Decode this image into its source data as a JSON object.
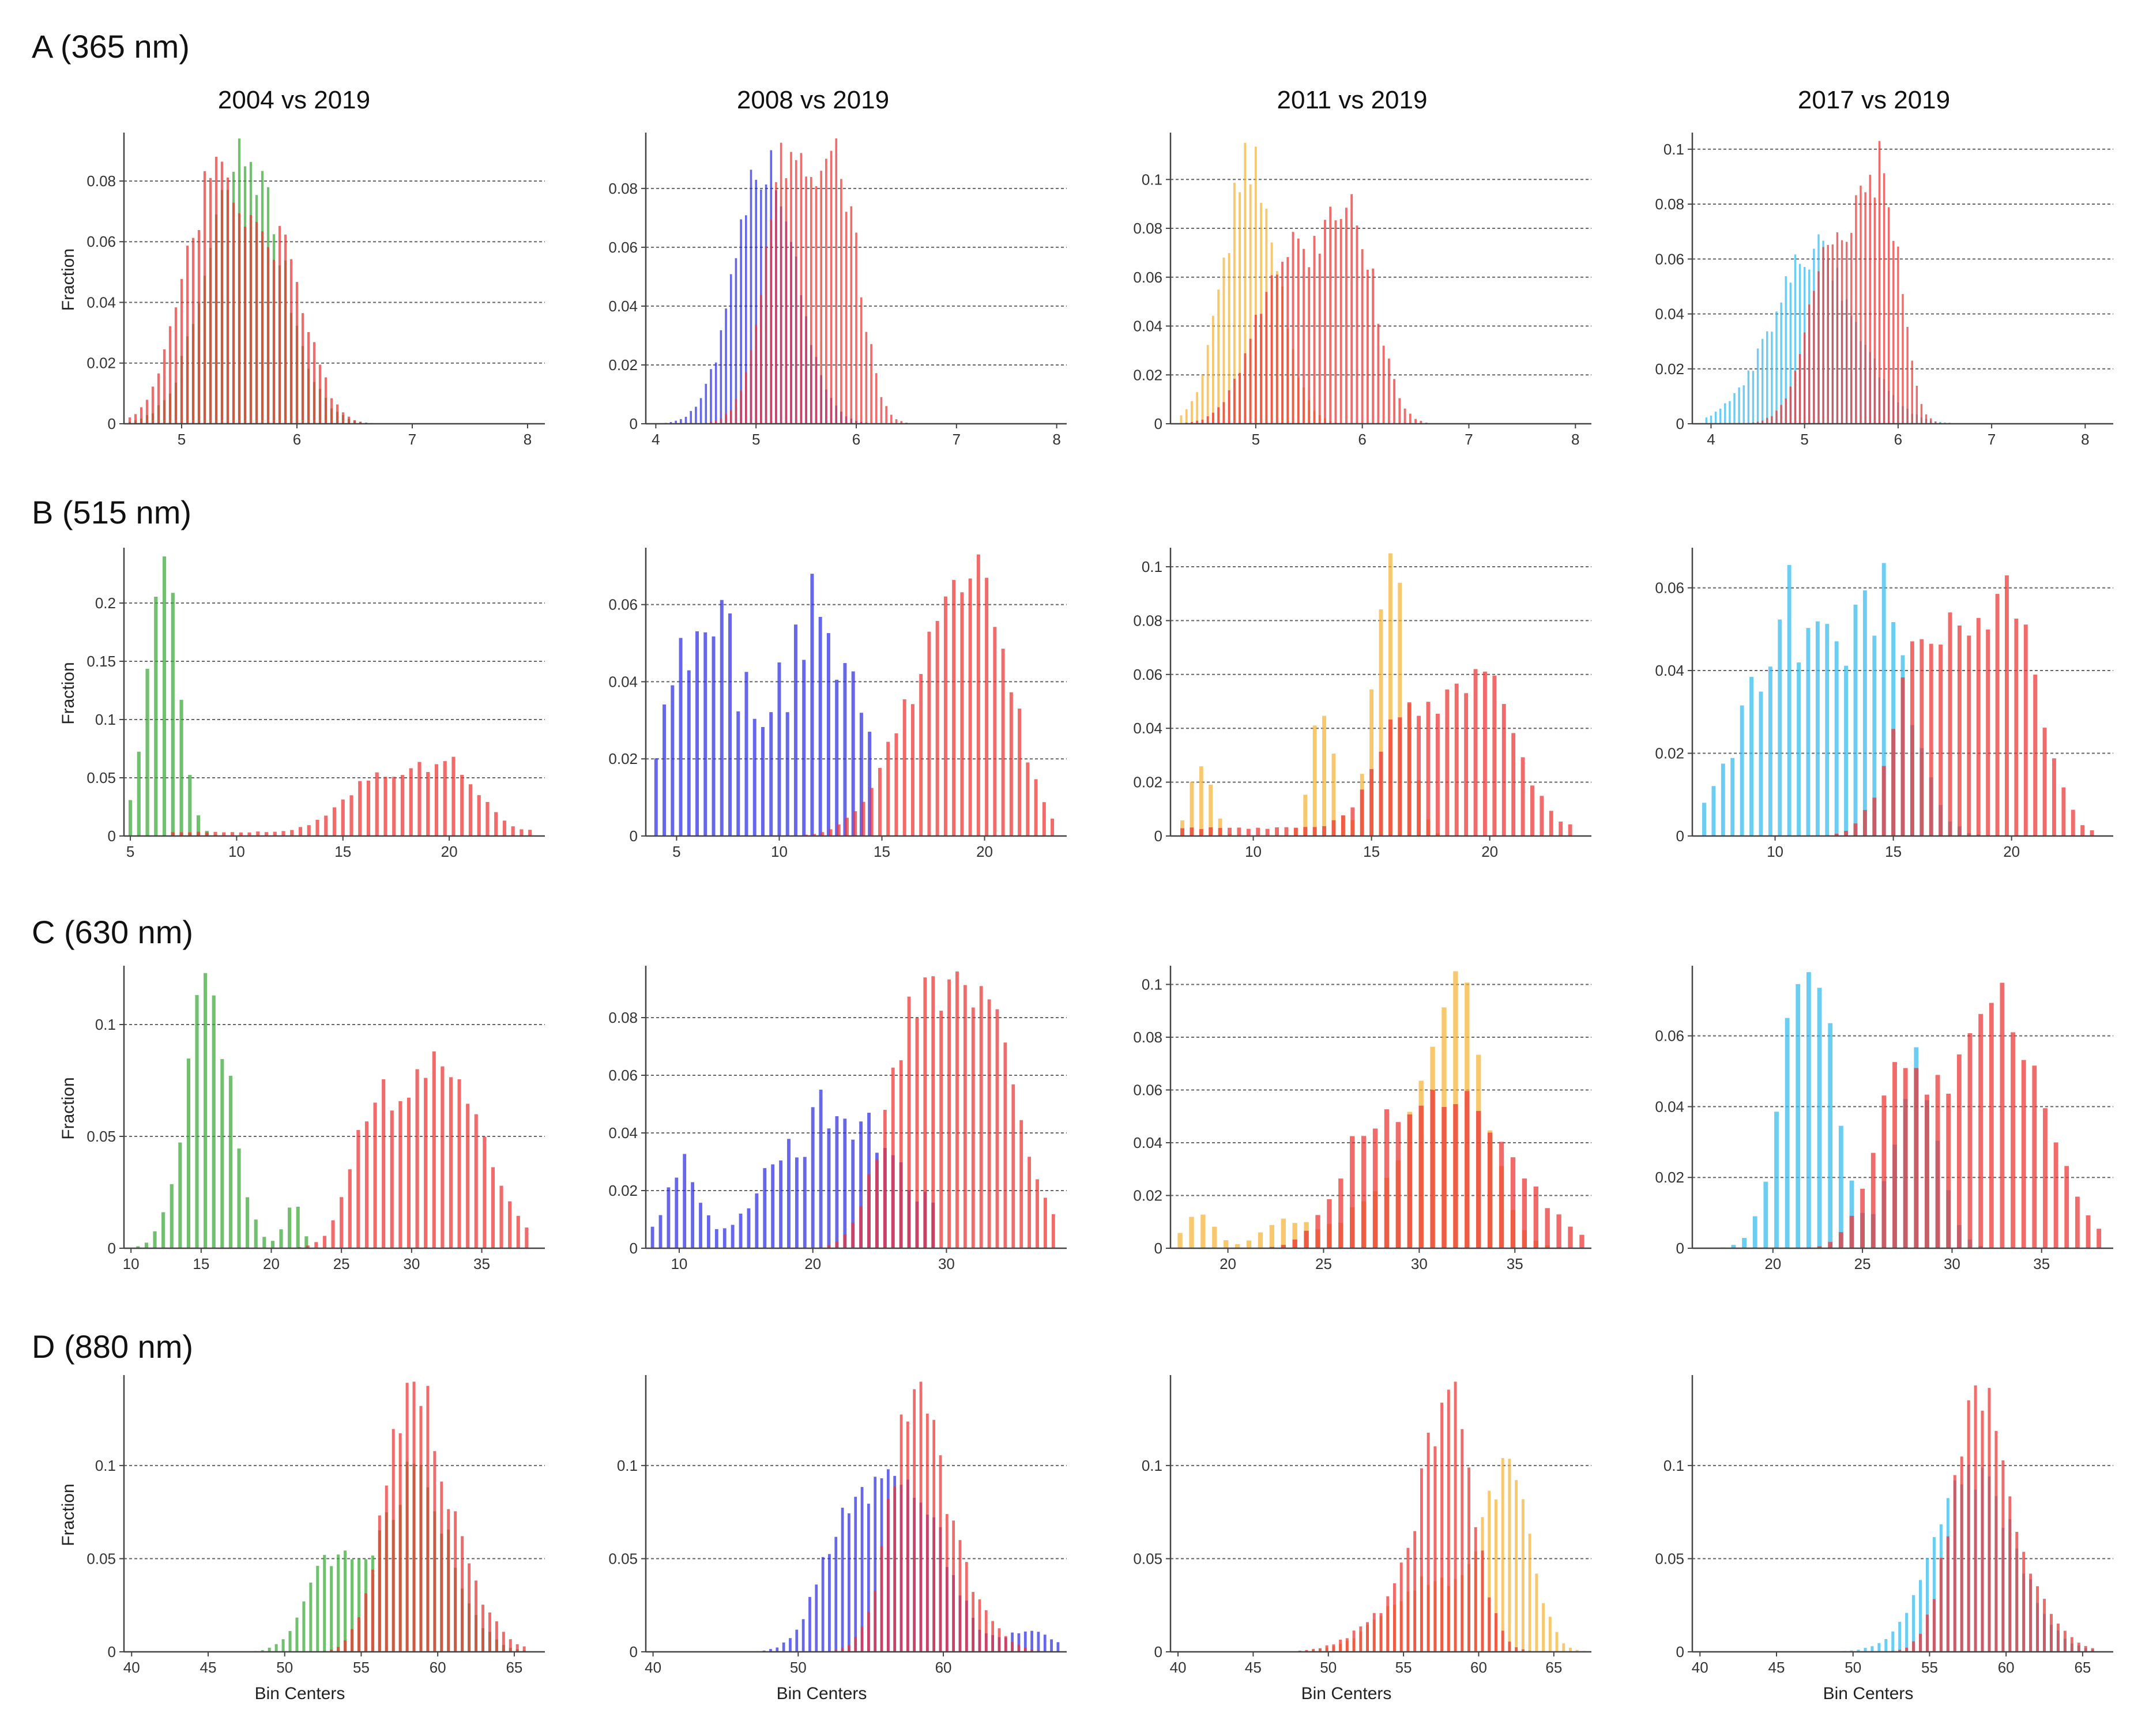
{
  "figure": {
    "column_titles": [
      "2004 vs 2019",
      "2008 vs 2019",
      "2011 vs 2019",
      "2017 vs 2019"
    ],
    "row_titles": [
      "A (365 nm)",
      "B (515 nm)",
      "C (630 nm)",
      "D (880 nm)"
    ],
    "ylabel": "Fraction",
    "xlabel": "Bin Centers",
    "colors": {
      "2004": "#3aa838",
      "2008": "#2e2ee6",
      "2011": "#f5b335",
      "2017": "#33bbee",
      "2019": "#ee3333"
    }
  },
  "chart_data": [
    {
      "type": "bar",
      "row": 0,
      "col": 0,
      "title": "2004 vs 2019",
      "xlim": [
        4.5,
        8.15
      ],
      "ylim": [
        0,
        0.095
      ],
      "xticks": [
        5,
        6,
        7,
        8
      ],
      "yticks": [
        0,
        0.02,
        0.04,
        0.06,
        0.08
      ],
      "ylabel": "Fraction",
      "xlabel": "",
      "series": [
        {
          "name": "2004",
          "color": "#3aa838",
          "dist": [
            [
              5.55,
              0.32,
              1.0
            ]
          ],
          "peak": 0.094,
          "start": 4.55,
          "end": 7.6,
          "step": 0.05
        },
        {
          "name": "2019",
          "color": "#ee3333",
          "dist": [
            [
              5.3,
              0.28,
              1.0
            ],
            [
              5.9,
              0.22,
              0.6
            ]
          ],
          "peak": 0.088,
          "start": 4.55,
          "end": 7.6,
          "step": 0.05
        }
      ]
    },
    {
      "type": "bar",
      "row": 0,
      "col": 1,
      "title": "2008 vs 2019",
      "xlim": [
        3.9,
        8.1
      ],
      "ylim": [
        0,
        0.098
      ],
      "xticks": [
        4,
        5,
        6,
        7,
        8
      ],
      "yticks": [
        0,
        0.02,
        0.04,
        0.06,
        0.08
      ],
      "ylabel": "",
      "xlabel": "",
      "series": [
        {
          "name": "2008",
          "color": "#2e2ee6",
          "dist": [
            [
              5.1,
              0.3,
              1.0
            ]
          ],
          "peak": 0.093,
          "start": 4.0,
          "end": 7.9,
          "step": 0.05
        },
        {
          "name": "2019",
          "color": "#ee3333",
          "dist": [
            [
              5.35,
              0.25,
              1.0
            ],
            [
              5.85,
              0.2,
              0.8
            ]
          ],
          "peak": 0.097,
          "start": 4.0,
          "end": 7.9,
          "step": 0.05
        }
      ]
    },
    {
      "type": "bar",
      "row": 0,
      "col": 2,
      "title": "2011 vs 2019",
      "xlim": [
        4.2,
        8.15
      ],
      "ylim": [
        0,
        0.118
      ],
      "xticks": [
        5,
        6,
        7,
        8
      ],
      "yticks": [
        0,
        0.02,
        0.04,
        0.06,
        0.08,
        0.1
      ],
      "ylabel": "",
      "xlabel": "",
      "series": [
        {
          "name": "2011",
          "color": "#f5b335",
          "dist": [
            [
              4.95,
              0.25,
              1.0
            ]
          ],
          "peak": 0.115,
          "start": 4.3,
          "end": 7.9,
          "step": 0.05
        },
        {
          "name": "2019",
          "color": "#ee3333",
          "dist": [
            [
              5.3,
              0.3,
              0.8
            ],
            [
              5.9,
              0.22,
              1.0
            ]
          ],
          "peak": 0.094,
          "start": 4.3,
          "end": 7.9,
          "step": 0.05
        }
      ]
    },
    {
      "type": "bar",
      "row": 0,
      "col": 3,
      "title": "2017 vs 2019",
      "xlim": [
        3.8,
        8.3
      ],
      "ylim": [
        0,
        0.105
      ],
      "xticks": [
        4,
        5,
        6,
        7,
        8
      ],
      "yticks": [
        0,
        0.02,
        0.04,
        0.06,
        0.08,
        0.1
      ],
      "ylabel": "",
      "xlabel": "",
      "series": [
        {
          "name": "2017",
          "color": "#33bbee",
          "dist": [
            [
              5.1,
              0.45,
              1.0
            ]
          ],
          "peak": 0.069,
          "start": 3.95,
          "end": 8.1,
          "step": 0.05
        },
        {
          "name": "2019",
          "color": "#ee3333",
          "dist": [
            [
              5.35,
              0.28,
              0.9
            ],
            [
              5.85,
              0.18,
              1.0
            ]
          ],
          "peak": 0.103,
          "start": 3.95,
          "end": 8.1,
          "step": 0.05
        }
      ]
    },
    {
      "type": "bar",
      "row": 1,
      "col": 0,
      "title": "2004 vs 2019",
      "xlim": [
        4.7,
        24.5
      ],
      "ylim": [
        0,
        0.245
      ],
      "xticks": [
        5,
        10,
        15,
        20
      ],
      "yticks": [
        0,
        0.05,
        0.1,
        0.15,
        0.2
      ],
      "ylabel": "Fraction",
      "xlabel": "",
      "series": [
        {
          "name": "2004",
          "color": "#3aa838",
          "dist": [
            [
              6.5,
              0.75,
              1.0
            ]
          ],
          "peak": 0.24,
          "start": 5.0,
          "end": 9.5,
          "step": 0.4
        },
        {
          "name": "2019",
          "color": "#ee3333",
          "dist": [
            [
              16.5,
              1.6,
              0.75
            ],
            [
              20,
              1.4,
              1.0
            ]
          ],
          "peak": 0.068,
          "start": 7.0,
          "end": 24.0,
          "step": 0.4,
          "floor": 0.004
        }
      ]
    },
    {
      "type": "bar",
      "row": 1,
      "col": 1,
      "title": "2008 vs 2019",
      "xlim": [
        3.5,
        24.0
      ],
      "ylim": [
        0,
        0.074
      ],
      "xticks": [
        5,
        10,
        15,
        20
      ],
      "yticks": [
        0,
        0.02,
        0.04,
        0.06
      ],
      "ylabel": "",
      "xlabel": "",
      "series": [
        {
          "name": "2008",
          "color": "#2e2ee6",
          "dist": [
            [
              6.5,
              1.8,
              1.0
            ],
            [
              12,
              1.8,
              1.0
            ]
          ],
          "peak": 0.068,
          "start": 4.0,
          "end": 14.5,
          "step": 0.4,
          "jitter": 0.55
        },
        {
          "name": "2019",
          "color": "#ee3333",
          "dist": [
            [
              17.5,
              2.0,
              0.8
            ],
            [
              20,
              1.5,
              1.0
            ]
          ],
          "peak": 0.073,
          "start": 4.5,
          "end": 23.5,
          "step": 0.4
        }
      ]
    },
    {
      "type": "bar",
      "row": 1,
      "col": 2,
      "title": "2011 vs 2019",
      "xlim": [
        6.5,
        24.3
      ],
      "ylim": [
        0,
        0.106
      ],
      "xticks": [
        10,
        15,
        20
      ],
      "yticks": [
        0,
        0.02,
        0.04,
        0.06,
        0.08,
        0.1
      ],
      "ylabel": "",
      "xlabel": "",
      "series": [
        {
          "name": "2011",
          "color": "#f5b335",
          "dist": [
            [
              15.8,
              0.65,
              1.0
            ],
            [
              12.9,
              0.45,
              0.45
            ],
            [
              7.8,
              0.45,
              0.25
            ]
          ],
          "peak": 0.105,
          "start": 7.0,
          "end": 18.0,
          "step": 0.4
        },
        {
          "name": "2019",
          "color": "#ee3333",
          "dist": [
            [
              16.5,
              1.3,
              0.7
            ],
            [
              19.8,
              1.3,
              1.0
            ]
          ],
          "peak": 0.062,
          "start": 7.0,
          "end": 23.5,
          "step": 0.4,
          "floor": 0.003
        }
      ]
    },
    {
      "type": "bar",
      "row": 1,
      "col": 3,
      "title": "2017 vs 2019",
      "xlim": [
        6.5,
        24.3
      ],
      "ylim": [
        0,
        0.069
      ],
      "xticks": [
        10,
        15,
        20
      ],
      "yticks": [
        0,
        0.02,
        0.04,
        0.06
      ],
      "ylabel": "",
      "xlabel": "",
      "series": [
        {
          "name": "2017",
          "color": "#33bbee",
          "dist": [
            [
              10.5,
              1.8,
              1.0
            ],
            [
              14.5,
              1.3,
              0.95
            ]
          ],
          "peak": 0.066,
          "start": 7.0,
          "end": 22.0,
          "step": 0.4,
          "jitter": 0.45
        },
        {
          "name": "2019",
          "color": "#ee3333",
          "dist": [
            [
              16.5,
              1.3,
              0.85
            ],
            [
              19.8,
              1.3,
              1.0
            ]
          ],
          "peak": 0.063,
          "start": 7.0,
          "end": 23.5,
          "step": 0.4
        }
      ]
    },
    {
      "type": "bar",
      "row": 2,
      "col": 0,
      "title": "2004 vs 2019",
      "xlim": [
        9.5,
        39.5
      ],
      "ylim": [
        0,
        0.125
      ],
      "xticks": [
        10,
        15,
        20,
        25,
        30,
        35
      ],
      "yticks": [
        0,
        0.05,
        0.1
      ],
      "ylabel": "Fraction",
      "xlabel": "",
      "series": [
        {
          "name": "2004",
          "color": "#3aa838",
          "dist": [
            [
              15.5,
              1.6,
              1.0
            ],
            [
              21.5,
              0.6,
              0.18
            ]
          ],
          "peak": 0.123,
          "start": 10.5,
          "end": 23.0,
          "step": 0.6
        },
        {
          "name": "2019",
          "color": "#ee3333",
          "dist": [
            [
              32,
              3.0,
              1.0
            ],
            [
              27,
              1.5,
              0.45
            ]
          ],
          "peak": 0.088,
          "start": 13.0,
          "end": 38.5,
          "step": 0.6
        }
      ]
    },
    {
      "type": "bar",
      "row": 2,
      "col": 1,
      "title": "2008 vs 2019",
      "xlim": [
        7.5,
        39.0
      ],
      "ylim": [
        0,
        0.097
      ],
      "xticks": [
        10,
        20,
        30
      ],
      "yticks": [
        0,
        0.02,
        0.04,
        0.06,
        0.08
      ],
      "ylabel": "",
      "xlabel": "",
      "series": [
        {
          "name": "2008",
          "color": "#2e2ee6",
          "dist": [
            [
              22,
              4.5,
              1.0
            ],
            [
              10,
              1.2,
              0.55
            ]
          ],
          "peak": 0.055,
          "start": 8.0,
          "end": 29.0,
          "step": 0.6,
          "jitter": 0.5
        },
        {
          "name": "2019",
          "color": "#ee3333",
          "dist": [
            [
              32,
              3.0,
              1.0
            ],
            [
              27,
              2.0,
              0.6
            ]
          ],
          "peak": 0.096,
          "start": 14.0,
          "end": 38.5,
          "step": 0.6
        }
      ]
    },
    {
      "type": "bar",
      "row": 2,
      "col": 2,
      "title": "2011 vs 2019",
      "xlim": [
        17.0,
        39.0
      ],
      "ylim": [
        0,
        0.106
      ],
      "xticks": [
        20,
        25,
        30,
        35
      ],
      "yticks": [
        0,
        0.02,
        0.04,
        0.06,
        0.08,
        0.1
      ],
      "ylabel": "",
      "xlabel": "",
      "series": [
        {
          "name": "2011",
          "color": "#f5b335",
          "dist": [
            [
              32,
              1.5,
              1.0
            ],
            [
              29.5,
              2.5,
              0.35
            ],
            [
              23,
              1.2,
              0.12
            ],
            [
              18.5,
              0.8,
              0.15
            ]
          ],
          "peak": 0.105,
          "start": 17.5,
          "end": 38.0,
          "step": 0.6
        },
        {
          "name": "2019",
          "color": "#ee3333",
          "dist": [
            [
              32,
              3.0,
              1.0
            ],
            [
              27,
              1.5,
              0.5
            ]
          ],
          "peak": 0.06,
          "start": 17.5,
          "end": 38.5,
          "step": 0.6
        }
      ]
    },
    {
      "type": "bar",
      "row": 2,
      "col": 3,
      "title": "2017 vs 2019",
      "xlim": [
        15.5,
        39.0
      ],
      "ylim": [
        0,
        0.079
      ],
      "xticks": [
        20,
        25,
        30,
        35
      ],
      "yticks": [
        0,
        0.02,
        0.04,
        0.06
      ],
      "ylabel": "",
      "xlabel": "",
      "series": [
        {
          "name": "2017",
          "color": "#33bbee",
          "dist": [
            [
              22,
              1.4,
              1.0
            ],
            [
              28,
              1.2,
              0.62
            ]
          ],
          "peak": 0.078,
          "start": 16.0,
          "end": 33.0,
          "step": 0.6
        },
        {
          "name": "2019",
          "color": "#ee3333",
          "dist": [
            [
              32.5,
              2.5,
              1.0
            ],
            [
              27,
              1.5,
              0.6
            ]
          ],
          "peak": 0.075,
          "start": 16.0,
          "end": 38.5,
          "step": 0.6
        }
      ]
    },
    {
      "type": "bar",
      "row": 3,
      "col": 0,
      "title": "2004 vs 2019",
      "xlim": [
        39.5,
        67.0
      ],
      "ylim": [
        0,
        0.147
      ],
      "xticks": [
        40,
        45,
        50,
        55,
        60,
        65
      ],
      "yticks": [
        0,
        0.05,
        0.1
      ],
      "ylabel": "Fraction",
      "xlabel": "Bin Centers",
      "series": [
        {
          "name": "2004",
          "color": "#3aa838",
          "dist": [
            [
              58.5,
              2.3,
              1.0
            ],
            [
              53,
              1.6,
              0.5
            ]
          ],
          "peak": 0.102,
          "start": 40.0,
          "end": 66.0,
          "step": 0.45
        },
        {
          "name": "2019",
          "color": "#ee3333",
          "dist": [
            [
              58.2,
              1.7,
              1.0
            ],
            [
              61,
              2.0,
              0.3
            ]
          ],
          "peak": 0.145,
          "start": 40.0,
          "end": 66.0,
          "step": 0.45
        }
      ]
    },
    {
      "type": "bar",
      "row": 3,
      "col": 1,
      "title": "2008 vs 2019",
      "xlim": [
        39.5,
        68.5
      ],
      "ylim": [
        0,
        0.147
      ],
      "xticks": [
        40,
        50,
        60
      ],
      "yticks": [
        0,
        0.05,
        0.1
      ],
      "ylabel": "",
      "xlabel": "Bin Centers",
      "series": [
        {
          "name": "2008",
          "color": "#2e2ee6",
          "dist": [
            [
              57.5,
              2.5,
              1.0
            ],
            [
              53,
              1.8,
              0.55
            ],
            [
              66,
              1.5,
              0.12
            ]
          ],
          "peak": 0.098,
          "start": 40.0,
          "end": 68.0,
          "step": 0.45
        },
        {
          "name": "2019",
          "color": "#ee3333",
          "dist": [
            [
              58,
              1.7,
              1.0
            ],
            [
              61,
              2.0,
              0.25
            ]
          ],
          "peak": 0.145,
          "start": 40.0,
          "end": 68.0,
          "step": 0.45
        }
      ]
    },
    {
      "type": "bar",
      "row": 3,
      "col": 2,
      "title": "2011 vs 2019",
      "xlim": [
        39.5,
        67.5
      ],
      "ylim": [
        0,
        0.147
      ],
      "xticks": [
        40,
        45,
        50,
        55,
        60,
        65
      ],
      "yticks": [
        0,
        0.05,
        0.1
      ],
      "ylabel": "",
      "xlabel": "Bin Centers",
      "series": [
        {
          "name": "2011",
          "color": "#f5b335",
          "dist": [
            [
              62,
              1.5,
              1.0
            ],
            [
              57,
              3.0,
              0.45
            ]
          ],
          "peak": 0.104,
          "start": 40.0,
          "end": 67.0,
          "step": 0.45
        },
        {
          "name": "2019",
          "color": "#ee3333",
          "dist": [
            [
              58,
              1.6,
              1.0
            ],
            [
              55,
              2.5,
              0.2
            ]
          ],
          "peak": 0.145,
          "start": 40.0,
          "end": 67.0,
          "step": 0.45
        }
      ]
    },
    {
      "type": "bar",
      "row": 3,
      "col": 3,
      "title": "2017 vs 2019",
      "xlim": [
        39.5,
        67.0
      ],
      "ylim": [
        0,
        0.147
      ],
      "xticks": [
        40,
        45,
        50,
        55,
        60,
        65
      ],
      "yticks": [
        0,
        0.05,
        0.1
      ],
      "ylabel": "",
      "xlabel": "Bin Centers",
      "series": [
        {
          "name": "2017",
          "color": "#33bbee",
          "dist": [
            [
              58,
              2.6,
              1.0
            ]
          ],
          "peak": 0.1,
          "start": 40.0,
          "end": 66.0,
          "step": 0.45
        },
        {
          "name": "2019",
          "color": "#ee3333",
          "dist": [
            [
              58,
              1.6,
              1.0
            ],
            [
              61,
              2.0,
              0.25
            ]
          ],
          "peak": 0.143,
          "start": 40.0,
          "end": 66.0,
          "step": 0.45
        }
      ]
    }
  ]
}
